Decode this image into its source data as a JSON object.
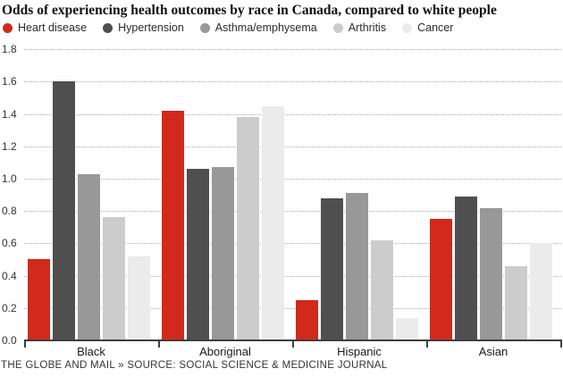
{
  "title": "Odds of experiencing health outcomes by race in Canada, compared to white people",
  "footer": {
    "credit": "THE GLOBE AND MAIL » SOURCE: SOCIAL SCIENCE & MEDICINE JOURNAL"
  },
  "colors": {
    "heart_disease": "#d2291d",
    "hypertension": "#4f4f4f",
    "asthma_emphysema": "#989898",
    "arthritis": "#cccccc",
    "cancer": "#ebebeb",
    "gridline": "#a8a8a8",
    "axis": "#3f3f3f"
  },
  "chart_data": {
    "type": "bar",
    "title": "Odds of experiencing health outcomes by race in Canada, compared to white people",
    "categories": [
      "Black",
      "Aboriginal",
      "Hispanic",
      "Asian"
    ],
    "series": [
      {
        "name": "Heart disease",
        "color": "#d2291d",
        "values": [
          0.5,
          1.42,
          0.25,
          0.75
        ]
      },
      {
        "name": "Hypertension",
        "color": "#4f4f4f",
        "values": [
          1.6,
          1.06,
          0.88,
          0.89
        ]
      },
      {
        "name": "Asthma/emphysema",
        "color": "#989898",
        "values": [
          1.03,
          1.07,
          0.91,
          0.82
        ]
      },
      {
        "name": "Arthritis",
        "color": "#cccccc",
        "values": [
          0.76,
          1.38,
          0.62,
          0.46
        ]
      },
      {
        "name": "Cancer",
        "color": "#ebebeb",
        "values": [
          0.52,
          1.45,
          0.14,
          0.6
        ]
      }
    ],
    "xlabel": "",
    "ylabel": "",
    "ylim": [
      0,
      1.8
    ],
    "ytick_step": 0.2,
    "ytick_labels": [
      "0.0",
      "0.2",
      "0.4",
      "0.6",
      "0.8",
      "1.0",
      "1.2",
      "1.4",
      "1.6",
      "1.8"
    ],
    "grid": "horizontal-dotted",
    "legend_position": "top-left"
  }
}
